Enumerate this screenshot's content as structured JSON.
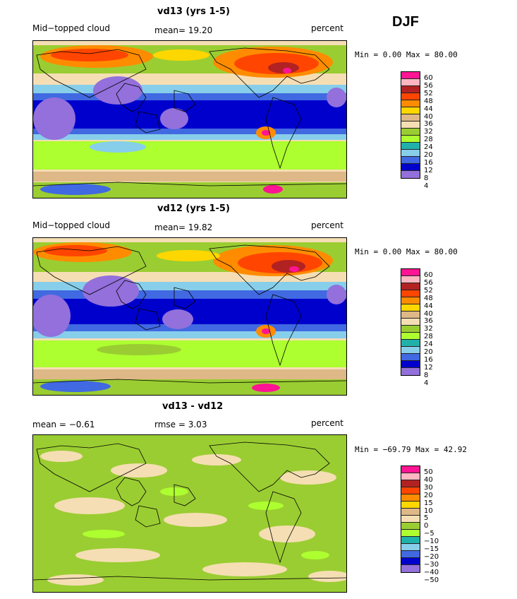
{
  "season": "DJF",
  "panels": [
    {
      "title": "vd13 (yrs 1-5)",
      "left_label": "Mid−topped cloud",
      "center_label": "mean=  19.20",
      "right_label": "percent",
      "minmax": "Min =   0.00 Max =  80.00",
      "levels": [
        "60",
        "56",
        "52",
        "48",
        "44",
        "40",
        "36",
        "32",
        "28",
        "24",
        "20",
        "16",
        "12",
        "8",
        "4"
      ],
      "colors": [
        "#ff1493",
        "#ffb6c1",
        "#b22222",
        "#ff4500",
        "#ff8c00",
        "#ffd700",
        "#deb887",
        "#f5deb3",
        "#9acd32",
        "#adff2f",
        "#20b2aa",
        "#87ceeb",
        "#4169e1",
        "#0000cd",
        "#9370db"
      ]
    },
    {
      "title": "vd12 (yrs 1-5)",
      "left_label": "Mid−topped cloud",
      "center_label": "mean=  19.82",
      "right_label": "percent",
      "minmax": "Min =   0.00 Max =  80.00",
      "levels": [
        "60",
        "56",
        "52",
        "48",
        "44",
        "40",
        "36",
        "32",
        "28",
        "24",
        "20",
        "16",
        "12",
        "8",
        "4"
      ],
      "colors": [
        "#ff1493",
        "#ffb6c1",
        "#b22222",
        "#ff4500",
        "#ff8c00",
        "#ffd700",
        "#deb887",
        "#f5deb3",
        "#9acd32",
        "#adff2f",
        "#20b2aa",
        "#87ceeb",
        "#4169e1",
        "#0000cd",
        "#9370db"
      ]
    },
    {
      "title": "vd13 - vd12",
      "left_label": "mean =   −0.61",
      "center_label": "rmse =    3.03",
      "right_label": "percent",
      "minmax": "Min = −69.79 Max =  42.92",
      "levels": [
        "50",
        "40",
        "30",
        "20",
        "15",
        "10",
        "5",
        "0",
        "−5",
        "−10",
        "−15",
        "−20",
        "−30",
        "−40",
        "−50"
      ],
      "colors": [
        "#ff1493",
        "#ffb6c1",
        "#b22222",
        "#ff4500",
        "#ff8c00",
        "#ffd700",
        "#deb887",
        "#f5deb3",
        "#9acd32",
        "#adff2f",
        "#20b2aa",
        "#87ceeb",
        "#4169e1",
        "#0000cd",
        "#9370db"
      ]
    }
  ]
}
